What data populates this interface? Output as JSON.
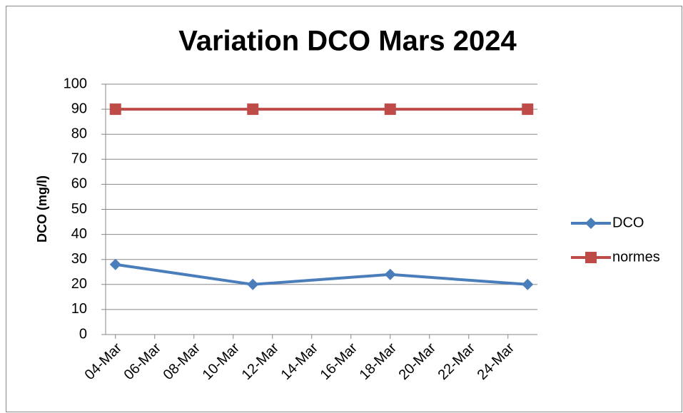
{
  "chart_data": {
    "type": "line",
    "title": "Variation DCO Mars 2024",
    "y_label": "DCO (mg/l)",
    "x": [
      4,
      11,
      18,
      25
    ],
    "xlim": [
      3.5,
      25.5
    ],
    "xticks": [
      {
        "value": 4,
        "label": "04-Mar"
      },
      {
        "value": 6,
        "label": "06-Mar"
      },
      {
        "value": 8,
        "label": "08-Mar"
      },
      {
        "value": 10,
        "label": "10-Mar"
      },
      {
        "value": 12,
        "label": "12-Mar"
      },
      {
        "value": 14,
        "label": "14-Mar"
      },
      {
        "value": 16,
        "label": "16-Mar"
      },
      {
        "value": 18,
        "label": "18-Mar"
      },
      {
        "value": 20,
        "label": "20-Mar"
      },
      {
        "value": 22,
        "label": "22-Mar"
      },
      {
        "value": 24,
        "label": "24-Mar"
      }
    ],
    "ylim": [
      0,
      100
    ],
    "yticks": [
      0,
      10,
      20,
      30,
      40,
      50,
      60,
      70,
      80,
      90,
      100
    ],
    "grid": true,
    "legend": "right",
    "series": [
      {
        "name": "DCO",
        "color": "#4a7ebb",
        "marker": "diamond",
        "values": [
          28,
          20,
          24,
          20
        ]
      },
      {
        "name": "normes",
        "color": "#be4b48",
        "marker": "square",
        "values": [
          90,
          90,
          90,
          90
        ]
      }
    ]
  }
}
